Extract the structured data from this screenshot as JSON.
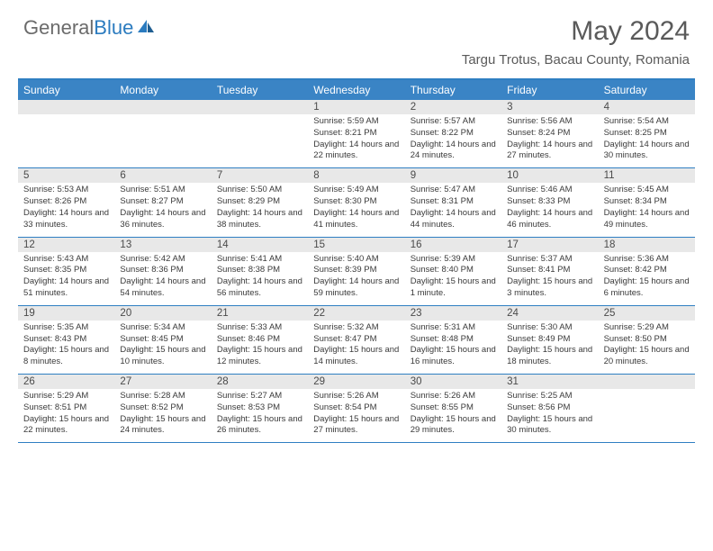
{
  "logo": {
    "part1": "General",
    "part2": "Blue"
  },
  "title": "May 2024",
  "location": "Targu Trotus, Bacau County, Romania",
  "colors": {
    "header_bg": "#3a84c5",
    "border": "#2f7fc2",
    "daynum_bg": "#e8e8e8",
    "text_dark": "#3a3a3a",
    "text_gray": "#5a5a5a",
    "logo_blue": "#2b7bbf"
  },
  "day_headers": [
    "Sunday",
    "Monday",
    "Tuesday",
    "Wednesday",
    "Thursday",
    "Friday",
    "Saturday"
  ],
  "weeks": [
    {
      "nums": [
        "",
        "",
        "",
        "1",
        "2",
        "3",
        "4"
      ],
      "cells": [
        "",
        "",
        "",
        "Sunrise: 5:59 AM\nSunset: 8:21 PM\nDaylight: 14 hours and 22 minutes.",
        "Sunrise: 5:57 AM\nSunset: 8:22 PM\nDaylight: 14 hours and 24 minutes.",
        "Sunrise: 5:56 AM\nSunset: 8:24 PM\nDaylight: 14 hours and 27 minutes.",
        "Sunrise: 5:54 AM\nSunset: 8:25 PM\nDaylight: 14 hours and 30 minutes."
      ]
    },
    {
      "nums": [
        "5",
        "6",
        "7",
        "8",
        "9",
        "10",
        "11"
      ],
      "cells": [
        "Sunrise: 5:53 AM\nSunset: 8:26 PM\nDaylight: 14 hours and 33 minutes.",
        "Sunrise: 5:51 AM\nSunset: 8:27 PM\nDaylight: 14 hours and 36 minutes.",
        "Sunrise: 5:50 AM\nSunset: 8:29 PM\nDaylight: 14 hours and 38 minutes.",
        "Sunrise: 5:49 AM\nSunset: 8:30 PM\nDaylight: 14 hours and 41 minutes.",
        "Sunrise: 5:47 AM\nSunset: 8:31 PM\nDaylight: 14 hours and 44 minutes.",
        "Sunrise: 5:46 AM\nSunset: 8:33 PM\nDaylight: 14 hours and 46 minutes.",
        "Sunrise: 5:45 AM\nSunset: 8:34 PM\nDaylight: 14 hours and 49 minutes."
      ]
    },
    {
      "nums": [
        "12",
        "13",
        "14",
        "15",
        "16",
        "17",
        "18"
      ],
      "cells": [
        "Sunrise: 5:43 AM\nSunset: 8:35 PM\nDaylight: 14 hours and 51 minutes.",
        "Sunrise: 5:42 AM\nSunset: 8:36 PM\nDaylight: 14 hours and 54 minutes.",
        "Sunrise: 5:41 AM\nSunset: 8:38 PM\nDaylight: 14 hours and 56 minutes.",
        "Sunrise: 5:40 AM\nSunset: 8:39 PM\nDaylight: 14 hours and 59 minutes.",
        "Sunrise: 5:39 AM\nSunset: 8:40 PM\nDaylight: 15 hours and 1 minute.",
        "Sunrise: 5:37 AM\nSunset: 8:41 PM\nDaylight: 15 hours and 3 minutes.",
        "Sunrise: 5:36 AM\nSunset: 8:42 PM\nDaylight: 15 hours and 6 minutes."
      ]
    },
    {
      "nums": [
        "19",
        "20",
        "21",
        "22",
        "23",
        "24",
        "25"
      ],
      "cells": [
        "Sunrise: 5:35 AM\nSunset: 8:43 PM\nDaylight: 15 hours and 8 minutes.",
        "Sunrise: 5:34 AM\nSunset: 8:45 PM\nDaylight: 15 hours and 10 minutes.",
        "Sunrise: 5:33 AM\nSunset: 8:46 PM\nDaylight: 15 hours and 12 minutes.",
        "Sunrise: 5:32 AM\nSunset: 8:47 PM\nDaylight: 15 hours and 14 minutes.",
        "Sunrise: 5:31 AM\nSunset: 8:48 PM\nDaylight: 15 hours and 16 minutes.",
        "Sunrise: 5:30 AM\nSunset: 8:49 PM\nDaylight: 15 hours and 18 minutes.",
        "Sunrise: 5:29 AM\nSunset: 8:50 PM\nDaylight: 15 hours and 20 minutes."
      ]
    },
    {
      "nums": [
        "26",
        "27",
        "28",
        "29",
        "30",
        "31",
        ""
      ],
      "cells": [
        "Sunrise: 5:29 AM\nSunset: 8:51 PM\nDaylight: 15 hours and 22 minutes.",
        "Sunrise: 5:28 AM\nSunset: 8:52 PM\nDaylight: 15 hours and 24 minutes.",
        "Sunrise: 5:27 AM\nSunset: 8:53 PM\nDaylight: 15 hours and 26 minutes.",
        "Sunrise: 5:26 AM\nSunset: 8:54 PM\nDaylight: 15 hours and 27 minutes.",
        "Sunrise: 5:26 AM\nSunset: 8:55 PM\nDaylight: 15 hours and 29 minutes.",
        "Sunrise: 5:25 AM\nSunset: 8:56 PM\nDaylight: 15 hours and 30 minutes.",
        ""
      ]
    }
  ]
}
